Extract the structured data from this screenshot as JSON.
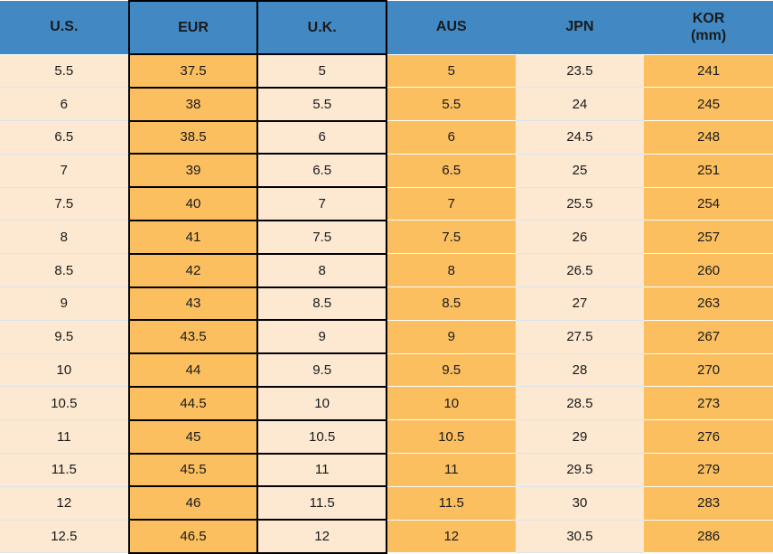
{
  "colors": {
    "header_bg": "#4289C4",
    "orange_cell": "#FBBF60",
    "cream_cell": "#FDE9D2",
    "black_border": "#000000",
    "light_separator": "#DCE4EC",
    "white_separator": "#FFFFFF",
    "text": "#1A1A1A"
  },
  "table": {
    "columns": [
      {
        "id": "us",
        "label": "U.S."
      },
      {
        "id": "eur",
        "label": "EUR"
      },
      {
        "id": "uk",
        "label": "U.K."
      },
      {
        "id": "aus",
        "label": "AUS"
      },
      {
        "id": "jpn",
        "label": "JPN"
      },
      {
        "id": "kor",
        "label": "KOR",
        "label_line2": "(mm)"
      }
    ]
  },
  "chart_data": {
    "type": "table",
    "columns": [
      "U.S.",
      "EUR",
      "U.K.",
      "AUS",
      "JPN",
      "KOR (mm)"
    ],
    "rows": [
      [
        "5.5",
        "37.5",
        "5",
        "5",
        "23.5",
        "241"
      ],
      [
        "6",
        "38",
        "5.5",
        "5.5",
        "24",
        "245"
      ],
      [
        "6.5",
        "38.5",
        "6",
        "6",
        "24.5",
        "248"
      ],
      [
        "7",
        "39",
        "6.5",
        "6.5",
        "25",
        "251"
      ],
      [
        "7.5",
        "40",
        "7",
        "7",
        "25.5",
        "254"
      ],
      [
        "8",
        "41",
        "7.5",
        "7.5",
        "26",
        "257"
      ],
      [
        "8.5",
        "42",
        "8",
        "8",
        "26.5",
        "260"
      ],
      [
        "9",
        "43",
        "8.5",
        "8.5",
        "27",
        "263"
      ],
      [
        "9.5",
        "43.5",
        "9",
        "9",
        "27.5",
        "267"
      ],
      [
        "10",
        "44",
        "9.5",
        "9.5",
        "28",
        "270"
      ],
      [
        "10.5",
        "44.5",
        "10",
        "10",
        "28.5",
        "273"
      ],
      [
        "11",
        "45",
        "10.5",
        "10.5",
        "29",
        "276"
      ],
      [
        "11.5",
        "45.5",
        "11",
        "11",
        "29.5",
        "279"
      ],
      [
        "12",
        "46",
        "11.5",
        "11.5",
        "30",
        "283"
      ],
      [
        "12.5",
        "46.5",
        "12",
        "12",
        "30.5",
        "286"
      ]
    ],
    "layout": {
      "header_style": "blue band, bold black centered text",
      "column_shading": [
        "cream",
        "orange",
        "cream",
        "orange",
        "cream",
        "orange"
      ],
      "boxed_columns": [
        "EUR",
        "U.K."
      ],
      "grid": "black cell borders on EUR and U.K. columns only; thin light separators elsewhere"
    }
  }
}
